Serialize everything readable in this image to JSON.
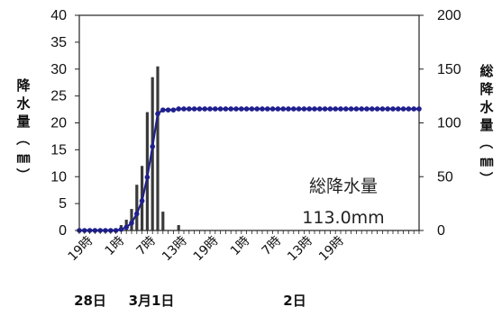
{
  "chart_data": {
    "type": "bar+line",
    "y_left": {
      "label": "降水量（㎜）",
      "ylim": [
        0,
        40
      ],
      "ticks": [
        0,
        5,
        10,
        15,
        20,
        25,
        30,
        35,
        40
      ]
    },
    "y_right": {
      "label": "総降水量（㎜）",
      "ylim": [
        0,
        200
      ],
      "ticks": [
        0,
        50,
        100,
        150,
        200
      ]
    },
    "x_tick_labels": [
      "19時",
      "1時",
      "7時",
      "13時",
      "19時",
      "1時",
      "7時",
      "13時",
      "19時"
    ],
    "date_labels": [
      "28日",
      "3月1日",
      "2日"
    ],
    "grid": false,
    "series": [
      {
        "kind": "bar",
        "color": "#3a3a3a",
        "axis": "left",
        "hours": [
          -2,
          -1,
          0,
          1,
          2,
          3,
          4,
          5,
          6,
          7,
          8,
          9,
          10,
          11,
          12,
          13,
          14,
          15,
          16,
          17,
          18,
          19,
          20,
          21,
          22,
          23,
          24,
          25,
          26,
          27,
          28,
          29,
          30,
          31,
          32,
          33,
          34,
          35,
          36,
          37,
          38,
          39,
          40,
          41,
          42,
          43,
          44,
          45,
          46,
          47,
          48,
          49,
          50,
          51,
          52,
          53,
          54,
          55,
          56,
          57,
          58,
          59,
          60,
          61,
          62,
          63
        ],
        "values": [
          0,
          0,
          0,
          0,
          0,
          0,
          0,
          0,
          1,
          2,
          4,
          8.5,
          12,
          22,
          28.5,
          30.5,
          3.5,
          0,
          0,
          1,
          0,
          0,
          0,
          0,
          0,
          0,
          0,
          0,
          0,
          0,
          0,
          0,
          0,
          0,
          0,
          0,
          0,
          0,
          0,
          0,
          0,
          0,
          0,
          0,
          0,
          0,
          0,
          0,
          0,
          0,
          0,
          0,
          0,
          0,
          0,
          0,
          0,
          0,
          0,
          0,
          0,
          0,
          0,
          0,
          0,
          0
        ]
      },
      {
        "kind": "line",
        "color": "#1f1f8f",
        "axis": "right",
        "hours": [
          -2,
          -1,
          0,
          1,
          2,
          3,
          4,
          5,
          6,
          7,
          8,
          9,
          10,
          11,
          12,
          13,
          14,
          15,
          16,
          17,
          18,
          19,
          20,
          21,
          22,
          23,
          24,
          25,
          26,
          27,
          28,
          29,
          30,
          31,
          32,
          33,
          34,
          35,
          36,
          37,
          38,
          39,
          40,
          41,
          42,
          43,
          44,
          45,
          46,
          47,
          48,
          49,
          50,
          51,
          52,
          53,
          54,
          55,
          56,
          57,
          58,
          59,
          60,
          61,
          62,
          63
        ],
        "values": [
          0,
          0,
          0,
          0,
          0,
          0,
          0,
          0,
          1,
          3,
          7,
          15.5,
          27.5,
          49.5,
          78,
          108.5,
          112,
          112,
          112,
          113,
          113,
          113,
          113,
          113,
          113,
          113,
          113,
          113,
          113,
          113,
          113,
          113,
          113,
          113,
          113,
          113,
          113,
          113,
          113,
          113,
          113,
          113,
          113,
          113,
          113,
          113,
          113,
          113,
          113,
          113,
          113,
          113,
          113,
          113,
          113,
          113,
          113,
          113,
          113,
          113,
          113,
          113,
          113,
          113,
          113,
          113
        ]
      }
    ],
    "annotation": {
      "line1": "総降水量",
      "line2": "113.0mm"
    }
  }
}
